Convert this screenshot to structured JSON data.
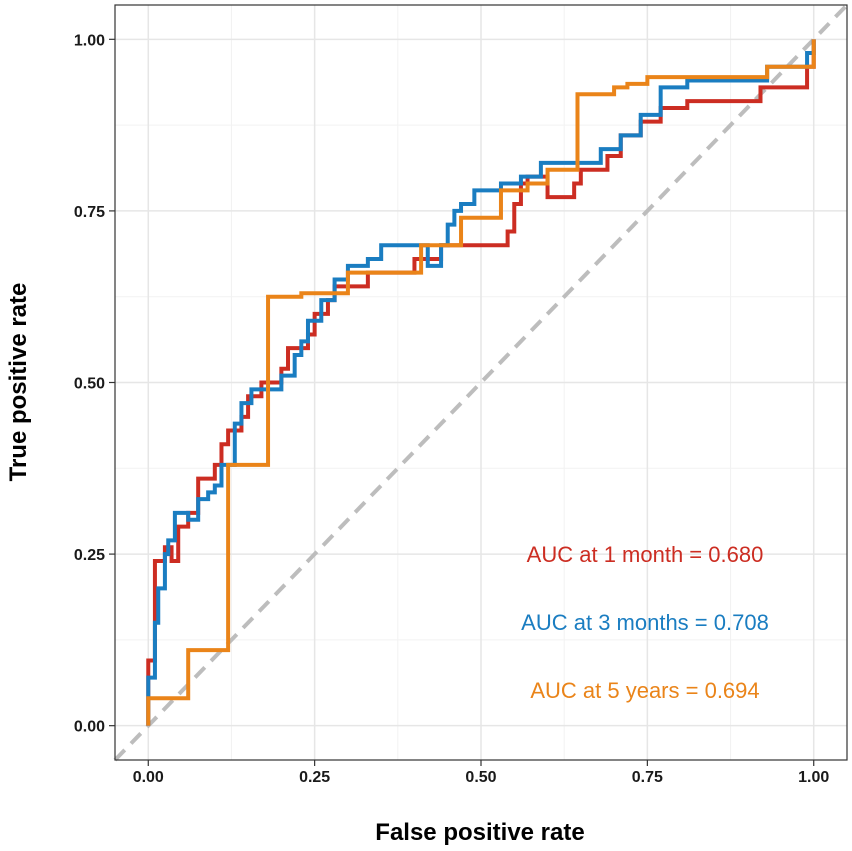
{
  "chart_data": {
    "type": "line",
    "title": "",
    "xlabel": "False positive rate",
    "ylabel": "True positive rate",
    "xlim": [
      -0.05,
      1.05
    ],
    "ylim": [
      -0.05,
      1.05
    ],
    "x_ticks": [
      0,
      0.25,
      0.5,
      0.75,
      1
    ],
    "x_tick_labels": [
      "0.00",
      "0.25",
      "0.50",
      "0.75",
      "1.00"
    ],
    "y_ticks": [
      0,
      0.25,
      0.5,
      0.75,
      1
    ],
    "y_tick_labels": [
      "0.00",
      "0.25",
      "0.50",
      "0.75",
      "1.00"
    ],
    "grid": true,
    "reference_line": {
      "from": [
        0,
        0
      ],
      "to": [
        1,
        1
      ],
      "style": "dashed",
      "color": "#bdbdbd"
    },
    "series": [
      {
        "name": "1 month",
        "color": "#cc2d22",
        "points": [
          [
            0,
            0
          ],
          [
            0,
            0.095
          ],
          [
            0.01,
            0.095
          ],
          [
            0.01,
            0.24
          ],
          [
            0.025,
            0.24
          ],
          [
            0.025,
            0.26
          ],
          [
            0.035,
            0.26
          ],
          [
            0.035,
            0.24
          ],
          [
            0.045,
            0.24
          ],
          [
            0.045,
            0.29
          ],
          [
            0.06,
            0.29
          ],
          [
            0.06,
            0.31
          ],
          [
            0.075,
            0.31
          ],
          [
            0.075,
            0.36
          ],
          [
            0.1,
            0.36
          ],
          [
            0.1,
            0.38
          ],
          [
            0.11,
            0.38
          ],
          [
            0.11,
            0.41
          ],
          [
            0.12,
            0.41
          ],
          [
            0.12,
            0.43
          ],
          [
            0.14,
            0.43
          ],
          [
            0.14,
            0.45
          ],
          [
            0.15,
            0.45
          ],
          [
            0.15,
            0.48
          ],
          [
            0.17,
            0.48
          ],
          [
            0.17,
            0.5
          ],
          [
            0.2,
            0.5
          ],
          [
            0.2,
            0.52
          ],
          [
            0.21,
            0.52
          ],
          [
            0.21,
            0.55
          ],
          [
            0.24,
            0.55
          ],
          [
            0.24,
            0.57
          ],
          [
            0.25,
            0.57
          ],
          [
            0.25,
            0.6
          ],
          [
            0.26,
            0.6
          ],
          [
            0.26,
            0.6
          ],
          [
            0.27,
            0.6
          ],
          [
            0.27,
            0.62
          ],
          [
            0.28,
            0.62
          ],
          [
            0.28,
            0.64
          ],
          [
            0.33,
            0.64
          ],
          [
            0.33,
            0.66
          ],
          [
            0.4,
            0.66
          ],
          [
            0.4,
            0.68
          ],
          [
            0.44,
            0.68
          ],
          [
            0.44,
            0.7
          ],
          [
            0.54,
            0.7
          ],
          [
            0.54,
            0.72
          ],
          [
            0.55,
            0.72
          ],
          [
            0.55,
            0.76
          ],
          [
            0.56,
            0.76
          ],
          [
            0.56,
            0.79
          ],
          [
            0.57,
            0.79
          ],
          [
            0.57,
            0.8
          ],
          [
            0.6,
            0.8
          ],
          [
            0.6,
            0.77
          ],
          [
            0.64,
            0.77
          ],
          [
            0.64,
            0.79
          ],
          [
            0.65,
            0.79
          ],
          [
            0.65,
            0.81
          ],
          [
            0.69,
            0.81
          ],
          [
            0.69,
            0.83
          ],
          [
            0.71,
            0.83
          ],
          [
            0.71,
            0.86
          ],
          [
            0.74,
            0.86
          ],
          [
            0.74,
            0.88
          ],
          [
            0.77,
            0.88
          ],
          [
            0.77,
            0.9
          ],
          [
            0.81,
            0.9
          ],
          [
            0.81,
            0.91
          ],
          [
            0.92,
            0.91
          ],
          [
            0.92,
            0.93
          ],
          [
            0.99,
            0.93
          ],
          [
            0.99,
            0.96
          ],
          [
            1,
            0.96
          ],
          [
            1,
            1
          ]
        ]
      },
      {
        "name": "3 months",
        "color": "#1a7dc1",
        "points": [
          [
            0,
            0
          ],
          [
            0,
            0.07
          ],
          [
            0.01,
            0.07
          ],
          [
            0.01,
            0.15
          ],
          [
            0.015,
            0.15
          ],
          [
            0.015,
            0.2
          ],
          [
            0.025,
            0.2
          ],
          [
            0.025,
            0.25
          ],
          [
            0.03,
            0.25
          ],
          [
            0.03,
            0.27
          ],
          [
            0.04,
            0.27
          ],
          [
            0.04,
            0.31
          ],
          [
            0.06,
            0.31
          ],
          [
            0.06,
            0.3
          ],
          [
            0.075,
            0.3
          ],
          [
            0.075,
            0.33
          ],
          [
            0.09,
            0.33
          ],
          [
            0.09,
            0.34
          ],
          [
            0.1,
            0.34
          ],
          [
            0.1,
            0.35
          ],
          [
            0.11,
            0.35
          ],
          [
            0.11,
            0.38
          ],
          [
            0.13,
            0.38
          ],
          [
            0.13,
            0.44
          ],
          [
            0.14,
            0.44
          ],
          [
            0.14,
            0.47
          ],
          [
            0.155,
            0.47
          ],
          [
            0.155,
            0.49
          ],
          [
            0.16,
            0.49
          ],
          [
            0.16,
            0.49
          ],
          [
            0.2,
            0.49
          ],
          [
            0.2,
            0.51
          ],
          [
            0.22,
            0.51
          ],
          [
            0.22,
            0.54
          ],
          [
            0.23,
            0.54
          ],
          [
            0.23,
            0.56
          ],
          [
            0.24,
            0.56
          ],
          [
            0.24,
            0.59
          ],
          [
            0.26,
            0.59
          ],
          [
            0.26,
            0.62
          ],
          [
            0.28,
            0.62
          ],
          [
            0.28,
            0.65
          ],
          [
            0.3,
            0.65
          ],
          [
            0.3,
            0.67
          ],
          [
            0.33,
            0.67
          ],
          [
            0.33,
            0.68
          ],
          [
            0.35,
            0.68
          ],
          [
            0.35,
            0.7
          ],
          [
            0.42,
            0.7
          ],
          [
            0.42,
            0.67
          ],
          [
            0.44,
            0.67
          ],
          [
            0.44,
            0.7
          ],
          [
            0.45,
            0.7
          ],
          [
            0.45,
            0.73
          ],
          [
            0.46,
            0.73
          ],
          [
            0.46,
            0.75
          ],
          [
            0.47,
            0.75
          ],
          [
            0.47,
            0.76
          ],
          [
            0.49,
            0.76
          ],
          [
            0.49,
            0.78
          ],
          [
            0.53,
            0.78
          ],
          [
            0.53,
            0.79
          ],
          [
            0.56,
            0.79
          ],
          [
            0.56,
            0.8
          ],
          [
            0.59,
            0.8
          ],
          [
            0.59,
            0.82
          ],
          [
            0.65,
            0.82
          ],
          [
            0.65,
            0.82
          ],
          [
            0.68,
            0.82
          ],
          [
            0.68,
            0.84
          ],
          [
            0.71,
            0.84
          ],
          [
            0.71,
            0.86
          ],
          [
            0.74,
            0.86
          ],
          [
            0.74,
            0.89
          ],
          [
            0.77,
            0.89
          ],
          [
            0.77,
            0.93
          ],
          [
            0.81,
            0.93
          ],
          [
            0.81,
            0.94
          ],
          [
            0.93,
            0.94
          ],
          [
            0.93,
            0.96
          ],
          [
            0.99,
            0.96
          ],
          [
            0.99,
            0.98
          ],
          [
            1,
            0.98
          ],
          [
            1,
            1
          ]
        ]
      },
      {
        "name": "5 years",
        "color": "#ea8419",
        "points": [
          [
            0,
            0
          ],
          [
            0,
            0.04
          ],
          [
            0.045,
            0.04
          ],
          [
            0.045,
            0.04
          ],
          [
            0.06,
            0.04
          ],
          [
            0.06,
            0.11
          ],
          [
            0.12,
            0.11
          ],
          [
            0.12,
            0.38
          ],
          [
            0.13,
            0.38
          ],
          [
            0.13,
            0.38
          ],
          [
            0.18,
            0.38
          ],
          [
            0.18,
            0.625
          ],
          [
            0.23,
            0.625
          ],
          [
            0.23,
            0.63
          ],
          [
            0.3,
            0.63
          ],
          [
            0.3,
            0.66
          ],
          [
            0.41,
            0.66
          ],
          [
            0.41,
            0.7
          ],
          [
            0.47,
            0.7
          ],
          [
            0.47,
            0.74
          ],
          [
            0.53,
            0.74
          ],
          [
            0.53,
            0.78
          ],
          [
            0.57,
            0.78
          ],
          [
            0.57,
            0.79
          ],
          [
            0.6,
            0.79
          ],
          [
            0.6,
            0.81
          ],
          [
            0.645,
            0.81
          ],
          [
            0.645,
            0.92
          ],
          [
            0.7,
            0.92
          ],
          [
            0.7,
            0.93
          ],
          [
            0.72,
            0.93
          ],
          [
            0.72,
            0.935
          ],
          [
            0.75,
            0.935
          ],
          [
            0.75,
            0.945
          ],
          [
            0.93,
            0.945
          ],
          [
            0.93,
            0.96
          ],
          [
            1,
            0.96
          ],
          [
            1,
            1
          ]
        ]
      }
    ],
    "annotations": [
      {
        "text": "AUC at 1 month = 0.680",
        "color": "#cc2d22"
      },
      {
        "text": "AUC at 3 months = 0.708",
        "color": "#1a7dc1"
      },
      {
        "text": "AUC at 5 years = 0.694",
        "color": "#ea8419"
      }
    ]
  }
}
